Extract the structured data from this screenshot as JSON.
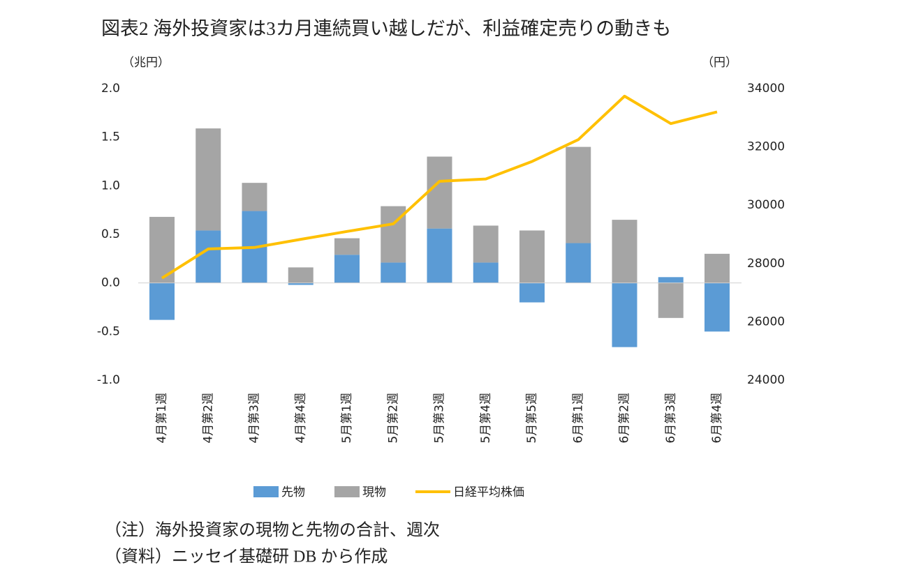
{
  "chart_data": {
    "type": "bar-line",
    "title": "図表2 海外投資家は3カ月連続買い越しだが、利益確定売りの動きも",
    "y_label": "（兆円）",
    "y2_label": "（円）",
    "categories": [
      "4月第1週",
      "4月第2週",
      "4月第3週",
      "4月第4週",
      "5月第1週",
      "5月第2週",
      "5月第3週",
      "5月第4週",
      "5月第5週",
      "6月第1週",
      "6月第2週",
      "6月第3週",
      "6月第4週"
    ],
    "series": [
      {
        "name": "先物",
        "color": "#5b9bd5",
        "kind": "bar",
        "values": [
          -0.38,
          0.54,
          0.74,
          -0.02,
          0.29,
          0.21,
          0.56,
          0.21,
          -0.2,
          0.41,
          -0.66,
          0.06,
          -0.5
        ]
      },
      {
        "name": "現物",
        "color": "#a5a5a5",
        "kind": "bar",
        "values": [
          0.68,
          1.05,
          0.29,
          0.16,
          0.17,
          0.58,
          0.74,
          0.38,
          0.54,
          0.99,
          0.65,
          -0.36,
          0.3
        ]
      },
      {
        "name": "日経平均株価",
        "color": "#ffc000",
        "kind": "line",
        "axis": "y2",
        "values": [
          27500,
          28500,
          28550,
          28830,
          29100,
          29360,
          30820,
          30900,
          31500,
          32250,
          33740,
          32800,
          33200
        ]
      }
    ],
    "ylim": [
      -1,
      2
    ],
    "yticks": [
      {
        "value": -1,
        "label": "-1.0"
      },
      -0.5,
      {
        "value": 0,
        "label": "0.0"
      },
      0.5,
      {
        "value": 1,
        "label": "1.0"
      },
      1.5,
      {
        "value": 2,
        "label": "2.0"
      }
    ],
    "y2lim": [
      24000,
      34000
    ],
    "y2ticks": [
      24000,
      26000,
      28000,
      30000,
      32000,
      34000
    ],
    "stacked": true,
    "grid": false,
    "legend": "bottom",
    "notes": [
      "（注）海外投資家の現物と先物の合計、週次",
      "（資料）ニッセイ基礎研 DB から作成"
    ]
  }
}
